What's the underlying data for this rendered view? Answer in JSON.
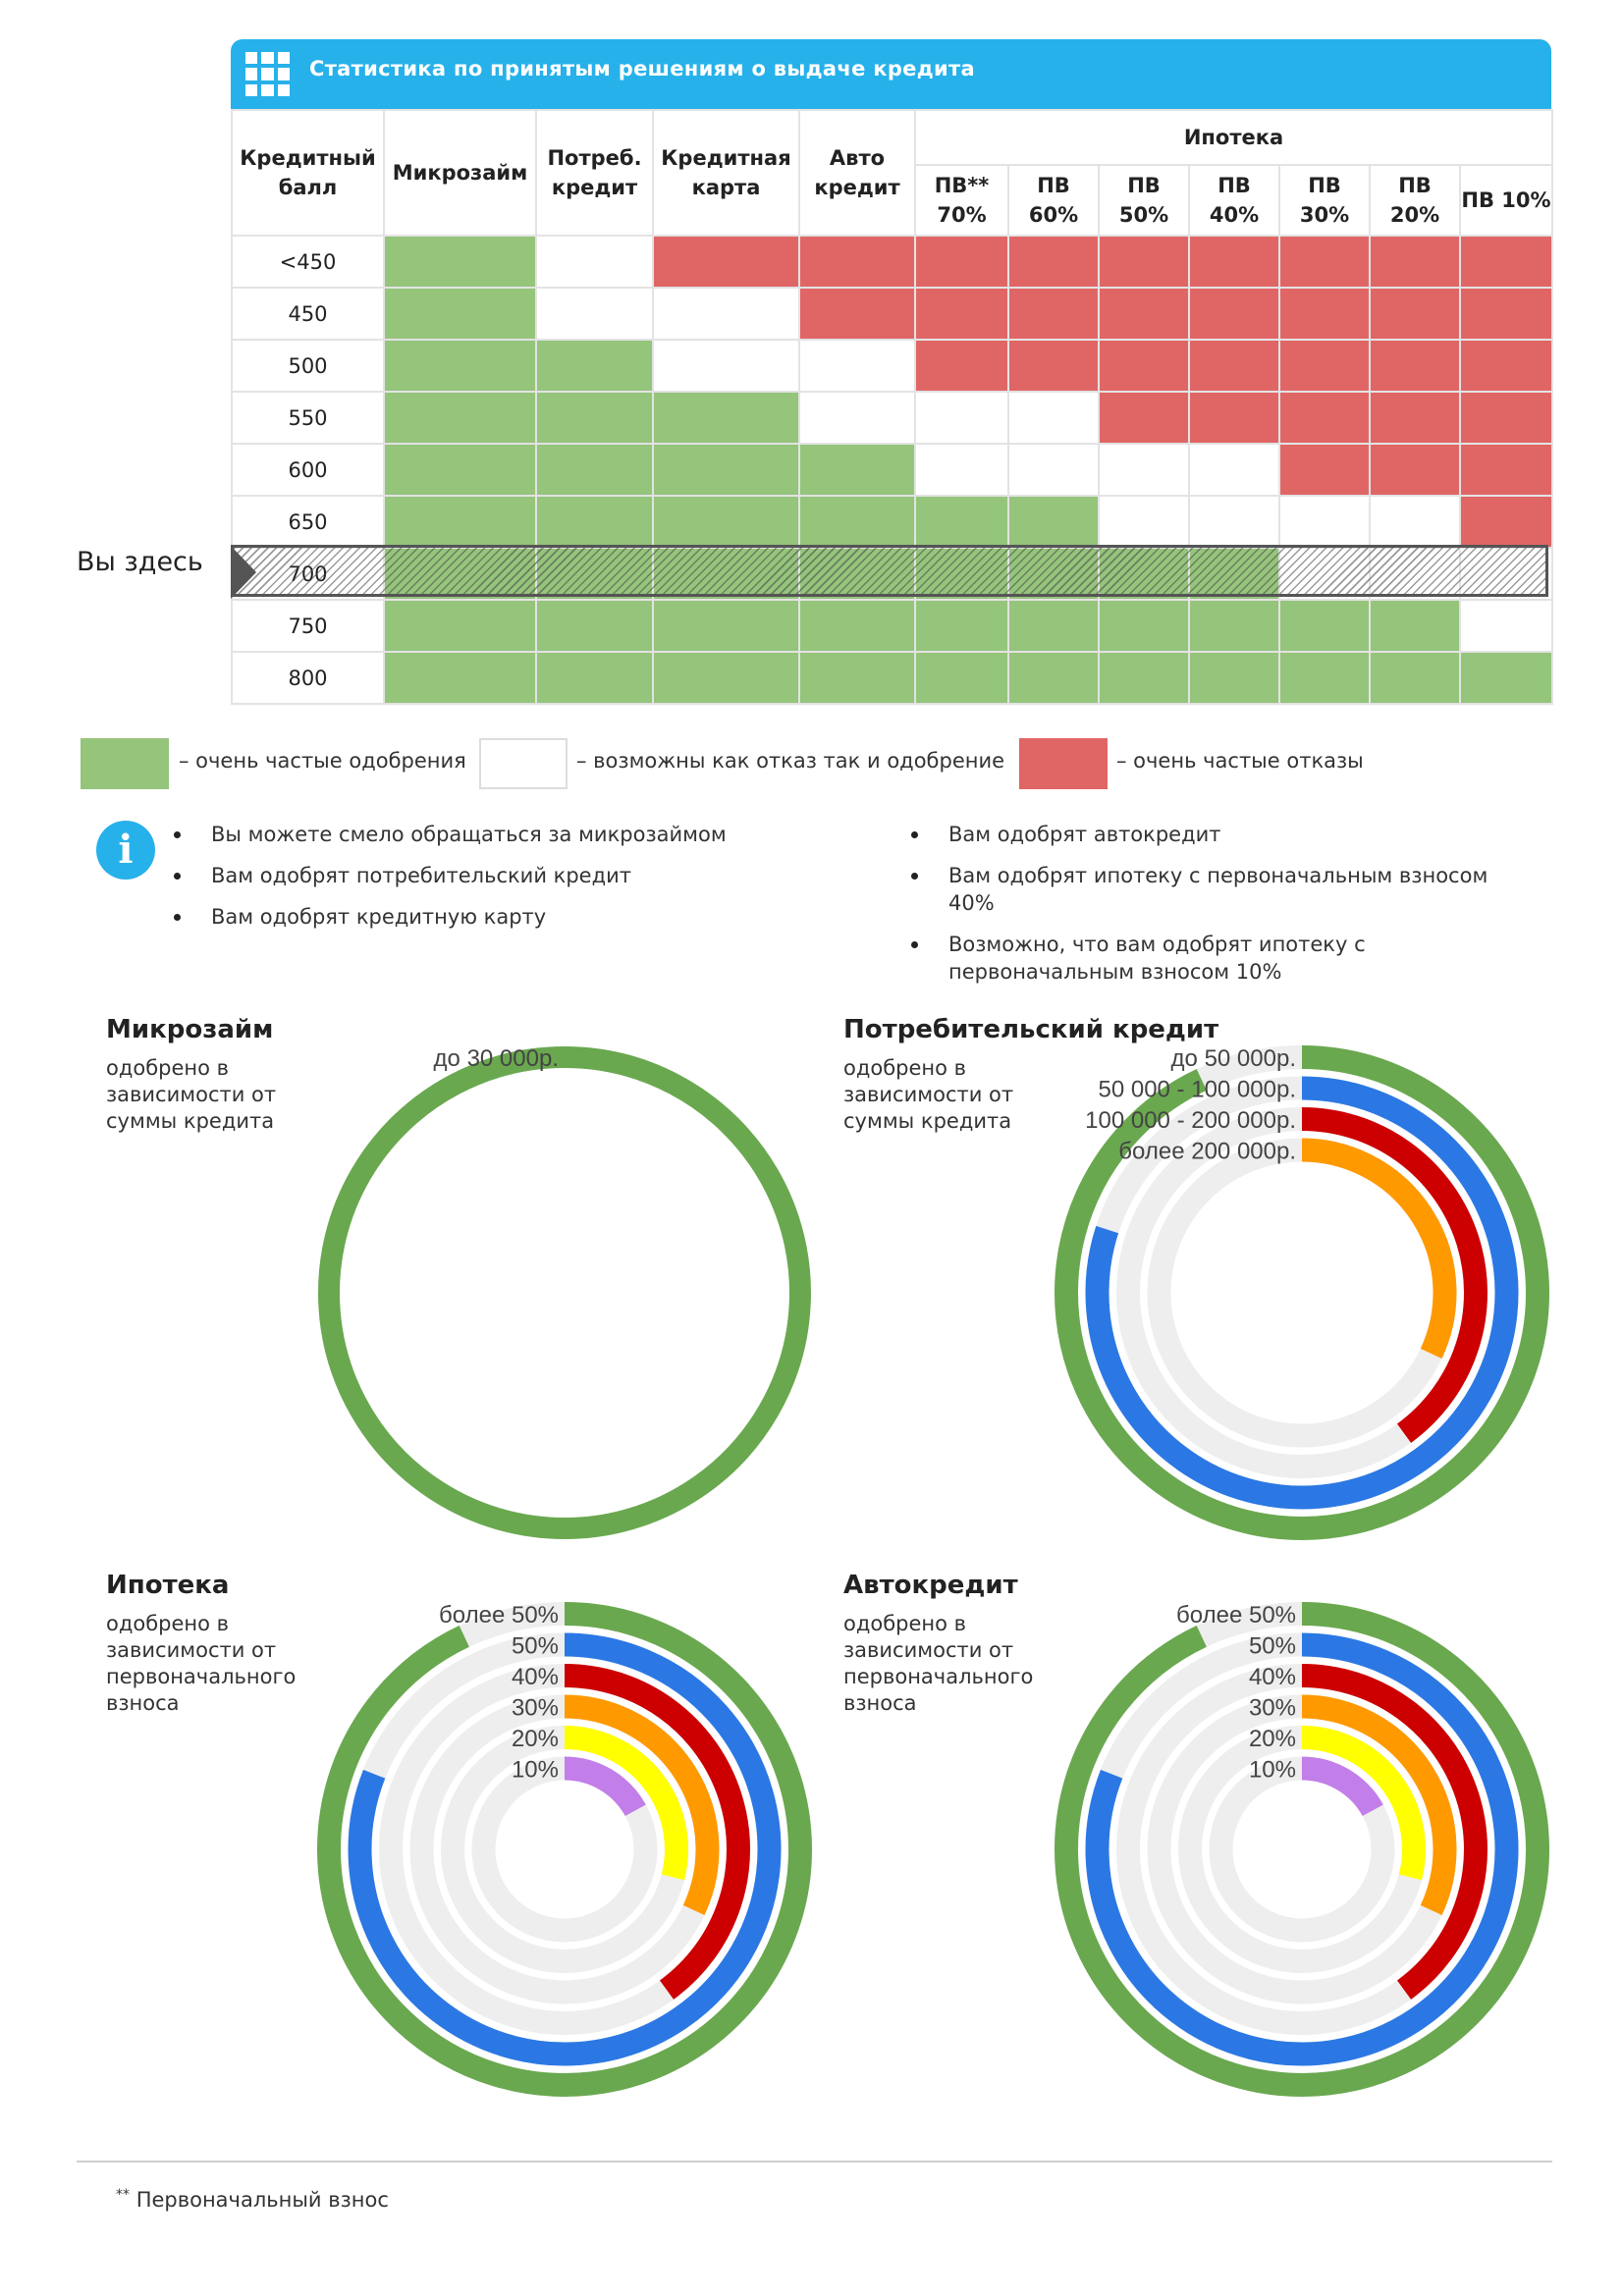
{
  "header": {
    "title": "Статистика по принятым решениям о выдаче кредита",
    "icon": "grid-icon"
  },
  "table": {
    "col_score": "Кредитный балл",
    "col_micro": "Микрозайм",
    "col_consumer": "Потреб. кредит",
    "col_card": "Кредитная карта",
    "col_auto": "Авто кредит",
    "mortgage": "Ипотека",
    "mortgage_cols": [
      "ПВ** 70%",
      "ПВ 60%",
      "ПВ 50%",
      "ПВ 40%",
      "ПВ 30%",
      "ПВ 20%",
      "ПВ 10%"
    ],
    "rows": [
      {
        "score": "<450",
        "cells": [
          "g",
          "w",
          "r",
          "r",
          "r",
          "r",
          "r",
          "r",
          "r",
          "r",
          "r"
        ]
      },
      {
        "score": "450",
        "cells": [
          "g",
          "w",
          "w",
          "r",
          "r",
          "r",
          "r",
          "r",
          "r",
          "r",
          "r"
        ]
      },
      {
        "score": "500",
        "cells": [
          "g",
          "g",
          "w",
          "w",
          "r",
          "r",
          "r",
          "r",
          "r",
          "r",
          "r"
        ]
      },
      {
        "score": "550",
        "cells": [
          "g",
          "g",
          "g",
          "w",
          "w",
          "w",
          "r",
          "r",
          "r",
          "r",
          "r"
        ]
      },
      {
        "score": "600",
        "cells": [
          "g",
          "g",
          "g",
          "g",
          "w",
          "w",
          "w",
          "w",
          "r",
          "r",
          "r"
        ]
      },
      {
        "score": "650",
        "cells": [
          "g",
          "g",
          "g",
          "g",
          "g",
          "g",
          "w",
          "w",
          "w",
          "w",
          "r"
        ]
      },
      {
        "score": "700",
        "cells": [
          "g",
          "g",
          "g",
          "g",
          "g",
          "g",
          "g",
          "g",
          "w",
          "w",
          "w"
        ],
        "highlight": true
      },
      {
        "score": "750",
        "cells": [
          "g",
          "g",
          "g",
          "g",
          "g",
          "g",
          "g",
          "g",
          "g",
          "g",
          "w"
        ]
      },
      {
        "score": "800",
        "cells": [
          "g",
          "g",
          "g",
          "g",
          "g",
          "g",
          "g",
          "g",
          "g",
          "g",
          "g"
        ]
      }
    ],
    "you_are_here": "Вы здесь",
    "colors": {
      "g": "#95c47b",
      "w": "#ffffff",
      "r": "#e06666"
    }
  },
  "legend": {
    "approve": "– очень частые одобрения",
    "maybe": "– возможны как отказ так и одобрение",
    "reject": "– очень частые отказы"
  },
  "info": {
    "icon": "info-icon",
    "left": [
      "Вы можете смело обращаться за микрозаймом",
      "Вам одобрят потребительский кредит",
      "Вам одобрят кредитную карту"
    ],
    "right": [
      "Вам одобрят автокредит",
      "Вам одобрят ипотеку с первоначальным взносом 40%",
      "Возможно, что вам одобрят ипотеку с первоначальным взносом 10%"
    ]
  },
  "chart_data": [
    {
      "type": "radial-bar",
      "title": "Микрозайм",
      "subtitle": "одобрено в зависимости от суммы кредита",
      "series": [
        {
          "name": "до 30 000р.",
          "value": 100,
          "color": "#6aa84f"
        }
      ]
    },
    {
      "type": "radial-bar",
      "title": "Потребительский кредит",
      "subtitle": "одобрено в зависимости от суммы кредита",
      "series": [
        {
          "name": "до 50 000р.",
          "value": 93,
          "color": "#6aa84f"
        },
        {
          "name": "50 000 - 100 000р.",
          "value": 80,
          "color": "#2b78e4"
        },
        {
          "name": "100 000 - 200 000р.",
          "value": 40,
          "color": "#cc0000"
        },
        {
          "name": "более 200 000р.",
          "value": 32,
          "color": "#ff9900"
        }
      ]
    },
    {
      "type": "radial-bar",
      "title": "Ипотека",
      "subtitle": "одобрено в зависимости от первоначального взноса",
      "series": [
        {
          "name": "более 50%",
          "value": 93,
          "color": "#6aa84f"
        },
        {
          "name": "50%",
          "value": 81,
          "color": "#2b78e4"
        },
        {
          "name": "40%",
          "value": 40,
          "color": "#cc0000"
        },
        {
          "name": "30%",
          "value": 32,
          "color": "#ff9900"
        },
        {
          "name": "20%",
          "value": 29,
          "color": "#ffff00"
        },
        {
          "name": "10%",
          "value": 17,
          "color": "#c27ee9"
        }
      ]
    },
    {
      "type": "radial-bar",
      "title": "Автокредит",
      "subtitle": "одобрено в зависимости от первоначального взноса",
      "series": [
        {
          "name": "более 50%",
          "value": 93,
          "color": "#6aa84f"
        },
        {
          "name": "50%",
          "value": 81,
          "color": "#2b78e4"
        },
        {
          "name": "40%",
          "value": 40,
          "color": "#cc0000"
        },
        {
          "name": "30%",
          "value": 32,
          "color": "#ff9900"
        },
        {
          "name": "20%",
          "value": 29,
          "color": "#ffff00"
        },
        {
          "name": "10%",
          "value": 17,
          "color": "#c27ee9"
        }
      ]
    }
  ],
  "footnote": {
    "mark": "**",
    "text": "Первоначальный взнос"
  }
}
